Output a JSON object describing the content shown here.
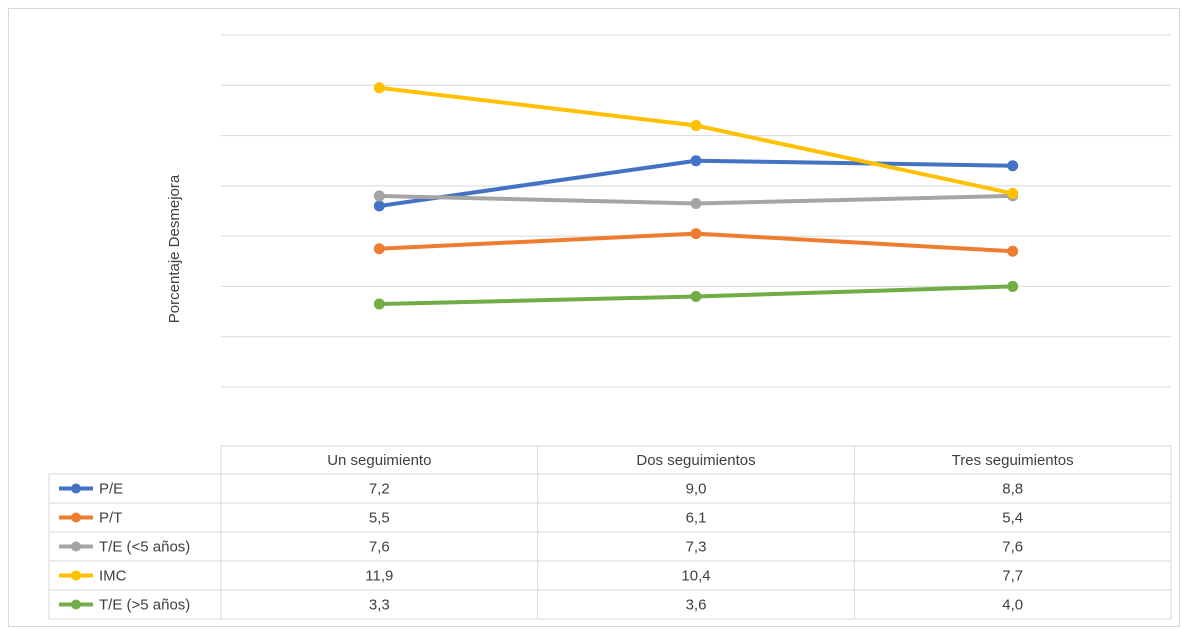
{
  "chart_data": {
    "type": "line",
    "title": "",
    "xlabel": "",
    "ylabel": "Porcentaje Desmejora",
    "categories": [
      "Un seguimiento",
      "Dos seguimientos",
      "Tres seguimientos"
    ],
    "ylim": [
      0,
      14
    ],
    "grid": true,
    "legend": "data-table",
    "series": [
      {
        "name": "P/E",
        "color": "#4472c4",
        "values": [
          "7,2",
          "9,0",
          "8,8"
        ]
      },
      {
        "name": "P/T",
        "color": "#ed7d31",
        "values": [
          "5,5",
          "6,1",
          "5,4"
        ]
      },
      {
        "name": "T/E (<5 años)",
        "color": "#a5a5a5",
        "values": [
          "7,6",
          "7,3",
          "7,6"
        ]
      },
      {
        "name": "IMC",
        "color": "#ffc000",
        "values": [
          "11,9",
          "10,4",
          "7,7"
        ]
      },
      {
        "name": "T/E (>5 años)",
        "color": "#70ad47",
        "values": [
          "3,3",
          "3,6",
          "4,0"
        ]
      }
    ]
  }
}
